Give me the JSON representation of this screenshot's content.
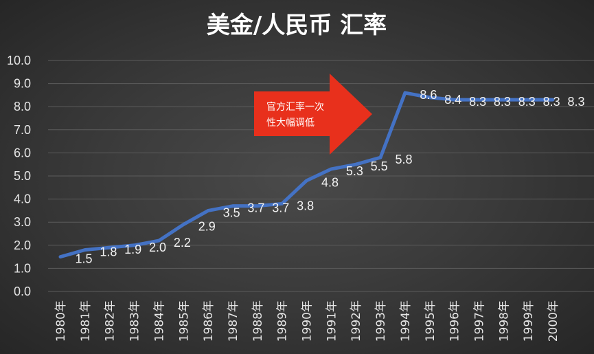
{
  "chart_data": {
    "type": "line",
    "title": "美金/人民币 汇率",
    "categories": [
      "1980年",
      "1981年",
      "1982年",
      "1983年",
      "1984年",
      "1985年",
      "1986年",
      "1987年",
      "1988年",
      "1989年",
      "1990年",
      "1991年",
      "1992年",
      "1993年",
      "1994年",
      "1995年",
      "1996年",
      "1997年",
      "1998年",
      "1999年",
      "2000年"
    ],
    "values": [
      1.5,
      1.8,
      1.9,
      2.0,
      2.2,
      2.9,
      3.5,
      3.7,
      3.7,
      3.8,
      4.8,
      5.3,
      5.5,
      5.8,
      8.6,
      8.4,
      8.3,
      8.3,
      8.3,
      8.3,
      8.3
    ],
    "data_labels": [
      "1.5",
      "1.8",
      "1.9",
      "2.0",
      "2.2",
      "2.9",
      "3.5",
      "3.7",
      "3.7",
      "3.8",
      "4.8",
      "5.3",
      "5.5",
      "5.8",
      "8.6",
      "8.4",
      "8.3",
      "8.3",
      "8.3",
      "8.3",
      "8.3"
    ],
    "ylim": [
      0,
      10
    ],
    "yticks": [
      "0.0",
      "1.0",
      "2.0",
      "3.0",
      "4.0",
      "5.0",
      "6.0",
      "7.0",
      "8.0",
      "9.0",
      "10.0"
    ],
    "grid": true,
    "line_color": "#4472C4",
    "annotation": {
      "lines": [
        "官方汇率一次",
        "性大幅调低"
      ],
      "color": "#E8301C"
    }
  },
  "colors": {
    "background": "#3b3b3b",
    "text": "#FFFFFF",
    "grid": "#5C5C5C"
  }
}
